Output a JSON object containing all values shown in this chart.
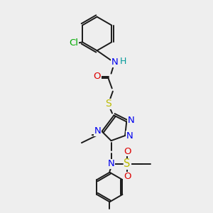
{
  "bg_color": "#eeeeee",
  "bond_color": "#1a1a1a",
  "lw": 1.4,
  "colors": {
    "Cl": "#00aa00",
    "N": "#0000ee",
    "O": "#dd0000",
    "S": "#bbbb00",
    "H": "#009999",
    "C": "#1a1a1a"
  }
}
